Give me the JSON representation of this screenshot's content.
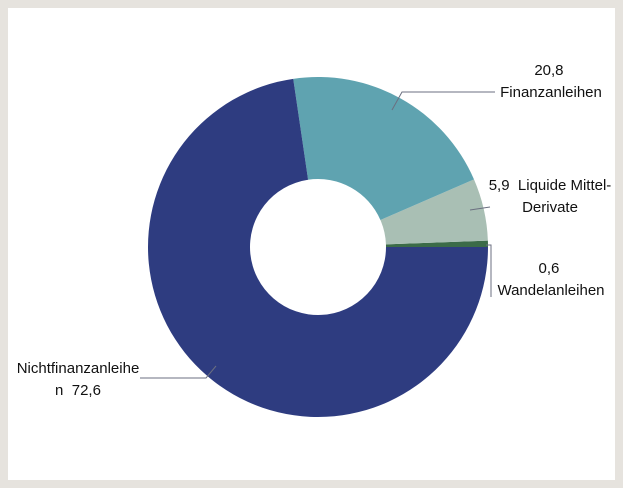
{
  "chart_data": {
    "type": "donut",
    "categories": [
      "Nichtfinanzanleihen",
      "Finanzanleihen",
      "Liquide Mittel-Derivate",
      "Wandelanleihen"
    ],
    "values": [
      72.6,
      20.8,
      5.9,
      0.6
    ],
    "value_labels": [
      "72,6",
      "20,8",
      "5,9",
      "0,6"
    ],
    "colors": [
      "#2e3c80",
      "#5fa3b0",
      "#a9bfb4",
      "#3b6b48"
    ]
  }
}
